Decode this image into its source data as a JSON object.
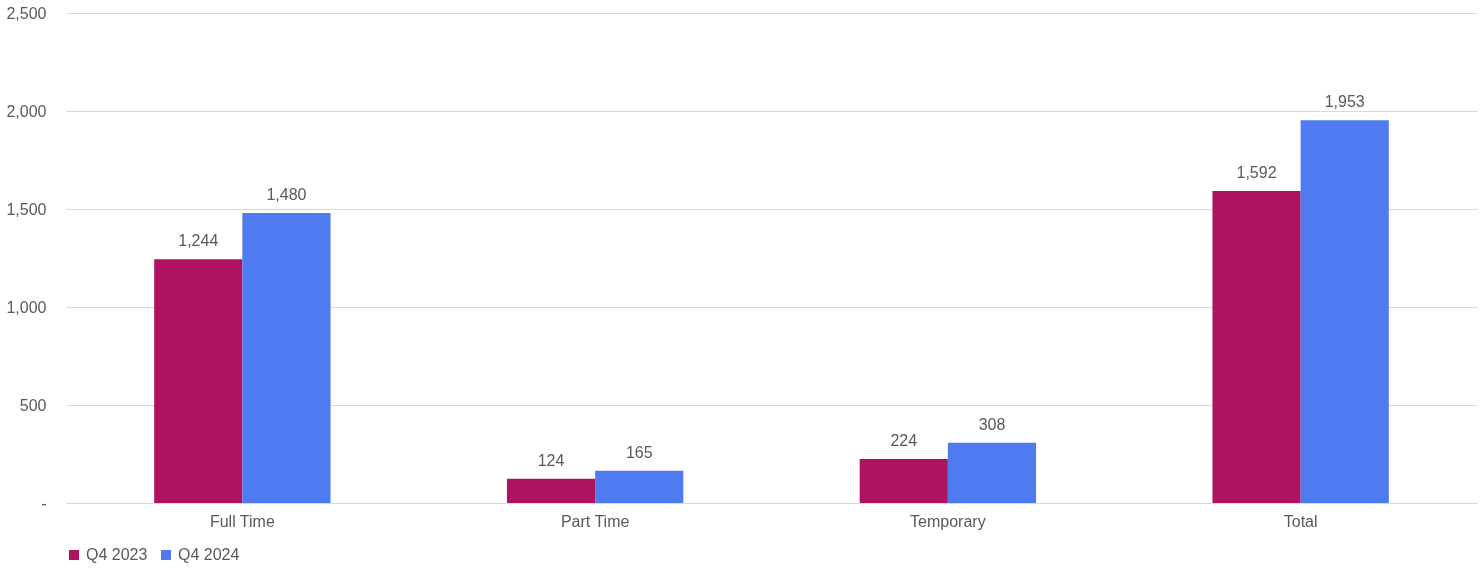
{
  "chart_data": {
    "type": "bar",
    "categories": [
      "Full Time",
      "Part Time",
      "Temporary",
      "Total"
    ],
    "series": [
      {
        "name": "Q4 2023",
        "color": "#b01262",
        "values": [
          1244,
          124,
          224,
          1592
        ],
        "value_labels": [
          "1,244",
          "124",
          "224",
          "1,592"
        ]
      },
      {
        "name": "Q4 2024",
        "color": "#4f7bf0",
        "values": [
          1480,
          165,
          308,
          1953
        ],
        "value_labels": [
          "1,480",
          "165",
          "308",
          "1,953"
        ]
      }
    ],
    "ylim": [
      0,
      2500
    ],
    "yticks": [
      {
        "value": 0,
        "label": "-"
      },
      {
        "value": 500,
        "label": "500"
      },
      {
        "value": 1000,
        "label": "1,000"
      },
      {
        "value": 1500,
        "label": "1,500"
      },
      {
        "value": 2000,
        "label": "2,000"
      },
      {
        "value": 2500,
        "label": "2,500"
      }
    ],
    "grid": "y",
    "legend": "bottom"
  }
}
